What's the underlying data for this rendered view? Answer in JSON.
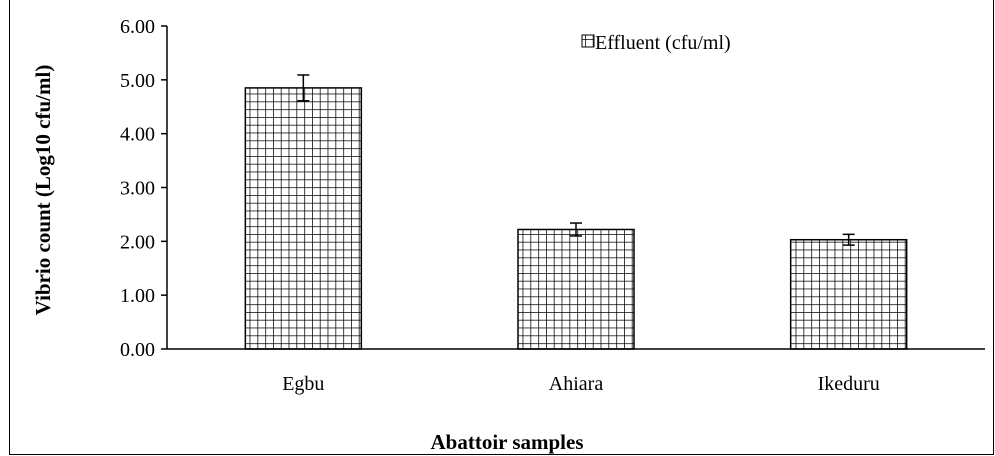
{
  "chart_data": {
    "type": "bar",
    "categories": [
      "Egbu",
      "Ahiara",
      "Ikeduru"
    ],
    "series": [
      {
        "name": "Effluent (cfu/ml)",
        "values": [
          4.85,
          2.22,
          2.03
        ],
        "error": [
          0.24,
          0.12,
          0.1
        ]
      }
    ],
    "xlabel": "Abattoir samples",
    "ylabel": "Vibrio count (Log10 cfu/ml)",
    "ylim": [
      0,
      6
    ],
    "yticks": [
      "0.00",
      "1.00",
      "2.00",
      "3.00",
      "4.00",
      "5.00",
      "6.00"
    ],
    "grid": false,
    "legend_position": "top-right",
    "bar_pattern": "grid-hatch",
    "colors": {
      "bar_fill": "#ffffff",
      "bar_pattern": "#000000",
      "axis": "#000000"
    }
  }
}
